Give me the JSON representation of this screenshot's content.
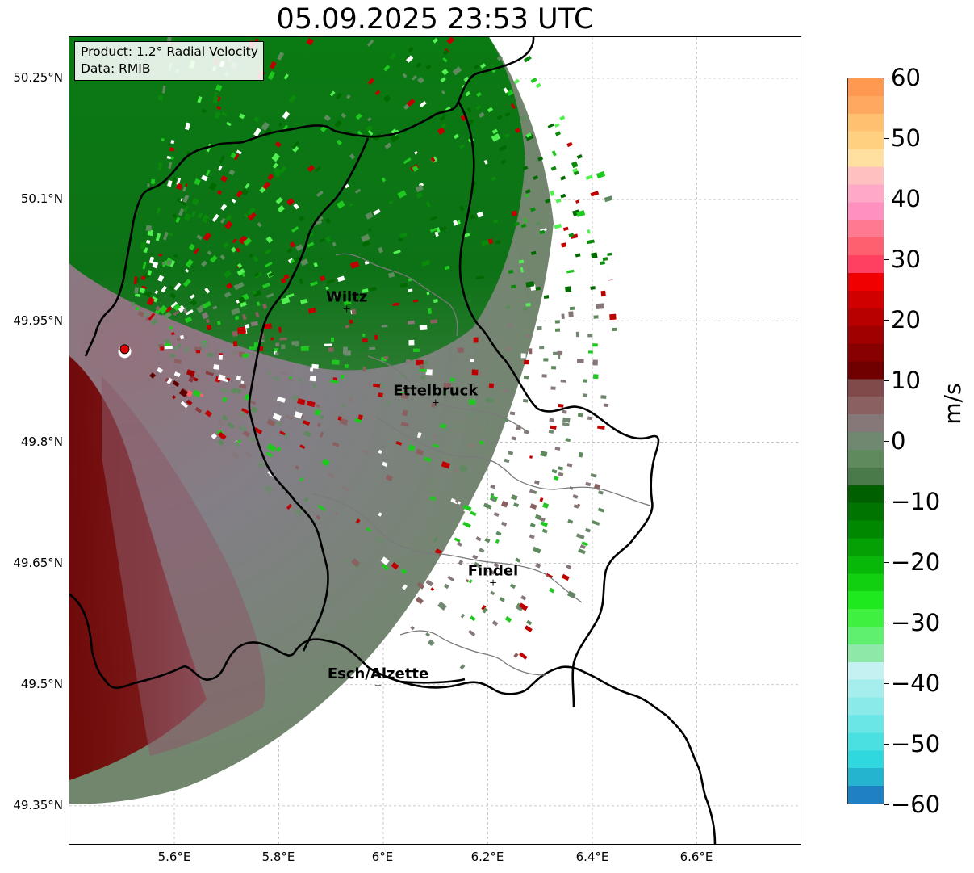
{
  "title": "05.09.2025 23:53 UTC",
  "info_box": {
    "product": "Product: 1.2° Radial Velocity",
    "data_source": "Data: RMIB"
  },
  "latitude_ticks": [
    "50.25°N",
    "50.1°N",
    "49.95°N",
    "49.8°N",
    "49.65°N",
    "49.5°N",
    "49.35°N"
  ],
  "longitude_ticks": [
    "5.6°E",
    "5.8°E",
    "6°E",
    "6.2°E",
    "6.4°E",
    "6.6°E"
  ],
  "cities": [
    {
      "name": "Wiltz",
      "lon": 5.93,
      "lat": 49.966
    },
    {
      "name": "Ettelbruck",
      "lon": 6.1,
      "lat": 49.85
    },
    {
      "name": "Findel",
      "lon": 6.21,
      "lat": 49.627
    },
    {
      "name": "Esch/Alzette",
      "lon": 5.99,
      "lat": 49.5
    }
  ],
  "radar_site": {
    "lon": 5.505,
    "lat": 49.915
  },
  "colorbar": {
    "label": "m/s",
    "ticks": [
      "60",
      "50",
      "40",
      "30",
      "20",
      "10",
      "0",
      "−10",
      "−20",
      "−30",
      "−40",
      "−50",
      "−60"
    ],
    "min": -60,
    "max": 60,
    "colors_bottom_to_top": [
      "#2080c4",
      "#25b4d0",
      "#2ed8de",
      "#4ae0e2",
      "#6be6e6",
      "#8aeaea",
      "#a6eeee",
      "#c4f2f2",
      "#8ee8a8",
      "#60f070",
      "#40f040",
      "#1ee81e",
      "#10d010",
      "#08b808",
      "#04a004",
      "#008800",
      "#007400",
      "#006000",
      "#4a7a4a",
      "#5e8a5e",
      "#708870",
      "#867878",
      "#8a6060",
      "#804a4a",
      "#700000",
      "#880000",
      "#a00000",
      "#b80000",
      "#d00000",
      "#f00000",
      "#ff4060",
      "#ff6070",
      "#ff7a90",
      "#ff90c0",
      "#ffa8c8",
      "#ffc0c0",
      "#ffe0a0",
      "#ffd080",
      "#ffc070",
      "#ffa860",
      "#ff9850"
    ]
  }
}
